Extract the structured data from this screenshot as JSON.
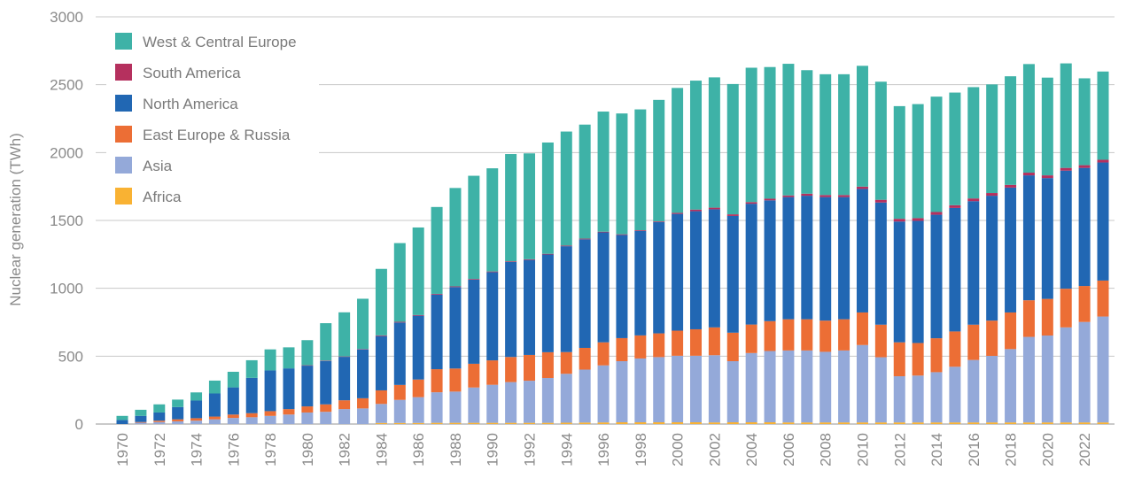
{
  "chart_data": {
    "type": "bar",
    "stacked": true,
    "ylabel": "Nuclear generation (TWh)",
    "xlabel": "",
    "ylim": [
      0,
      3000
    ],
    "yticks": [
      0,
      500,
      1000,
      1500,
      2000,
      2500,
      3000
    ],
    "grid": true,
    "legend_position": "top-left",
    "categories": [
      "1970",
      "1971",
      "1972",
      "1973",
      "1974",
      "1975",
      "1976",
      "1977",
      "1978",
      "1979",
      "1980",
      "1981",
      "1982",
      "1983",
      "1984",
      "1985",
      "1986",
      "1987",
      "1988",
      "1989",
      "1990",
      "1991",
      "1992",
      "1993",
      "1994",
      "1995",
      "1996",
      "1997",
      "1998",
      "1999",
      "2000",
      "2001",
      "2002",
      "2003",
      "2004",
      "2005",
      "2006",
      "2007",
      "2008",
      "2009",
      "2010",
      "2011",
      "2012",
      "2013",
      "2014",
      "2015",
      "2016",
      "2017",
      "2018",
      "2019",
      "2020",
      "2021",
      "2022",
      "2023"
    ],
    "xtick_labels": [
      "1970",
      "1972",
      "1974",
      "1976",
      "1978",
      "1980",
      "1982",
      "1984",
      "1986",
      "1988",
      "1990",
      "1992",
      "1994",
      "1996",
      "1998",
      "2000",
      "2002",
      "2004",
      "2006",
      "2008",
      "2010",
      "2012",
      "2014",
      "2016",
      "2018",
      "2020",
      "2022"
    ],
    "series": [
      {
        "name": "Africa",
        "color": "#f9b233",
        "values": [
          0,
          0,
          0,
          0,
          0,
          0,
          0,
          0,
          0,
          0,
          0,
          0,
          0,
          0,
          8,
          8,
          8,
          9,
          9,
          9,
          9,
          9,
          9,
          9,
          10,
          11,
          12,
          13,
          13,
          13,
          13,
          13,
          12,
          13,
          13,
          13,
          12,
          12,
          12,
          12,
          12,
          12,
          12,
          12,
          12,
          12,
          12,
          12,
          12,
          12,
          12,
          12,
          12,
          12
        ]
      },
      {
        "name": "Asia",
        "color": "#94a9d9",
        "values": [
          0,
          10,
          15,
          20,
          25,
          35,
          45,
          50,
          60,
          70,
          85,
          90,
          110,
          115,
          140,
          170,
          190,
          225,
          230,
          260,
          280,
          300,
          310,
          330,
          360,
          390,
          420,
          450,
          470,
          480,
          490,
          490,
          495,
          450,
          510,
          525,
          530,
          530,
          520,
          530,
          570,
          480,
          340,
          345,
          370,
          410,
          460,
          490,
          540,
          630,
          640,
          700,
          740,
          780
        ]
      },
      {
        "name": "East Europe & Russia",
        "color": "#ec6e35",
        "values": [
          0,
          5,
          10,
          15,
          18,
          20,
          25,
          30,
          35,
          40,
          45,
          55,
          65,
          75,
          100,
          110,
          130,
          170,
          170,
          175,
          180,
          185,
          190,
          190,
          160,
          160,
          170,
          170,
          170,
          175,
          185,
          195,
          205,
          210,
          210,
          220,
          230,
          230,
          230,
          230,
          240,
          240,
          250,
          240,
          250,
          260,
          260,
          260,
          270,
          270,
          270,
          285,
          265,
          265
        ]
      },
      {
        "name": "North America",
        "color": "#2167b3",
        "values": [
          30,
          45,
          60,
          90,
          130,
          170,
          200,
          260,
          300,
          300,
          300,
          320,
          320,
          360,
          400,
          460,
          470,
          550,
          600,
          620,
          650,
          700,
          700,
          720,
          780,
          800,
          810,
          760,
          770,
          820,
          860,
          870,
          870,
          860,
          890,
          890,
          900,
          910,
          910,
          900,
          910,
          900,
          890,
          900,
          910,
          910,
          910,
          920,
          920,
          920,
          890,
          870,
          870,
          870
        ]
      },
      {
        "name": "South America",
        "color": "#b5305e",
        "values": [
          0,
          0,
          0,
          0,
          0,
          0,
          0,
          0,
          0,
          0,
          3,
          3,
          3,
          3,
          5,
          5,
          5,
          5,
          5,
          5,
          5,
          5,
          5,
          5,
          5,
          5,
          5,
          5,
          5,
          5,
          8,
          12,
          12,
          12,
          12,
          12,
          12,
          15,
          15,
          15,
          17,
          20,
          20,
          20,
          20,
          20,
          20,
          20,
          20,
          20,
          20,
          20,
          20,
          20
        ]
      },
      {
        "name": "West & Central Europe",
        "color": "#3eb2a7",
        "values": [
          30,
          45,
          60,
          55,
          60,
          95,
          115,
          130,
          155,
          155,
          185,
          275,
          325,
          370,
          490,
          580,
          645,
          640,
          725,
          760,
          760,
          790,
          780,
          820,
          840,
          840,
          885,
          890,
          890,
          895,
          920,
          950,
          960,
          960,
          990,
          970,
          970,
          910,
          890,
          890,
          890,
          870,
          830,
          840,
          850,
          830,
          820,
          800,
          800,
          800,
          720,
          770,
          640,
          650
        ]
      }
    ]
  }
}
